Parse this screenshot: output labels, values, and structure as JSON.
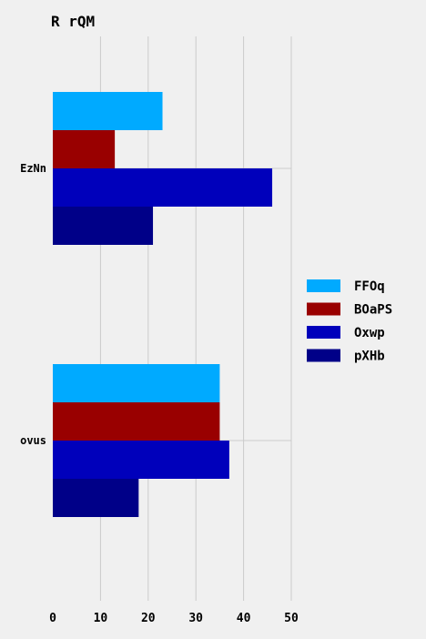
{
  "chart_data": {
    "type": "bar",
    "orientation": "horizontal",
    "title": "R rQM",
    "xlabel": "",
    "ylabel": "",
    "categories": [
      "EzNn",
      "ovus"
    ],
    "series": [
      {
        "name": "FFOq",
        "values": [
          23,
          35
        ],
        "color": "#00aaff"
      },
      {
        "name": "BOaPS",
        "values": [
          13,
          35
        ],
        "color": "#990000"
      },
      {
        "name": "Oxwp",
        "values": [
          46,
          37
        ],
        "color": "#0000bb"
      },
      {
        "name": "pXHb",
        "values": [
          21,
          18
        ],
        "color": "#000088"
      }
    ],
    "xlim": [
      0,
      50
    ],
    "xticks": [
      0,
      10,
      20,
      30,
      40,
      50
    ],
    "grid": true,
    "legend_position": "right"
  }
}
